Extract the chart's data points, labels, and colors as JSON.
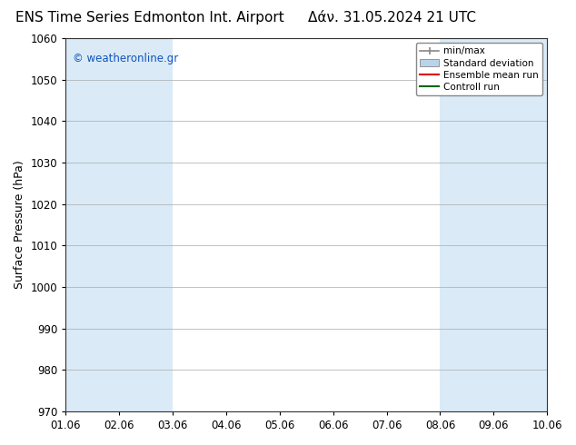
{
  "title_left": "ENS Time Series Edmonton Int. Airport",
  "title_right": "Δάν. 31.05.2024 21 UTC",
  "ylabel": "Surface Pressure (hPa)",
  "ylim": [
    970,
    1060
  ],
  "yticks": [
    970,
    980,
    990,
    1000,
    1010,
    1020,
    1030,
    1040,
    1050,
    1060
  ],
  "xlim": [
    0,
    9
  ],
  "xtick_labels": [
    "01.06",
    "02.06",
    "03.06",
    "04.06",
    "05.06",
    "06.06",
    "07.06",
    "08.06",
    "09.06",
    "10.06"
  ],
  "xtick_positions": [
    0,
    1,
    2,
    3,
    4,
    5,
    6,
    7,
    8,
    9
  ],
  "shaded_bands": [
    {
      "x_start": 0,
      "x_end": 1,
      "color": "#daeaf7"
    },
    {
      "x_start": 1,
      "x_end": 2,
      "color": "#daeaf7"
    },
    {
      "x_start": 7,
      "x_end": 8,
      "color": "#daeaf7"
    },
    {
      "x_start": 8,
      "x_end": 9,
      "color": "#daeaf7"
    }
  ],
  "watermark_text": "© weatheronline.gr",
  "watermark_color": "#1155bb",
  "legend_labels": [
    "min/max",
    "Standard deviation",
    "Ensemble mean run",
    "Controll run"
  ],
  "legend_colors_line": [
    "#888888",
    "#b8d4ea",
    "#dd0000",
    "#006600"
  ],
  "bg_color": "#ffffff",
  "plot_bg_color": "#ffffff",
  "grid_color": "#aaaaaa",
  "title_fontsize": 11,
  "label_fontsize": 9,
  "tick_fontsize": 8.5
}
